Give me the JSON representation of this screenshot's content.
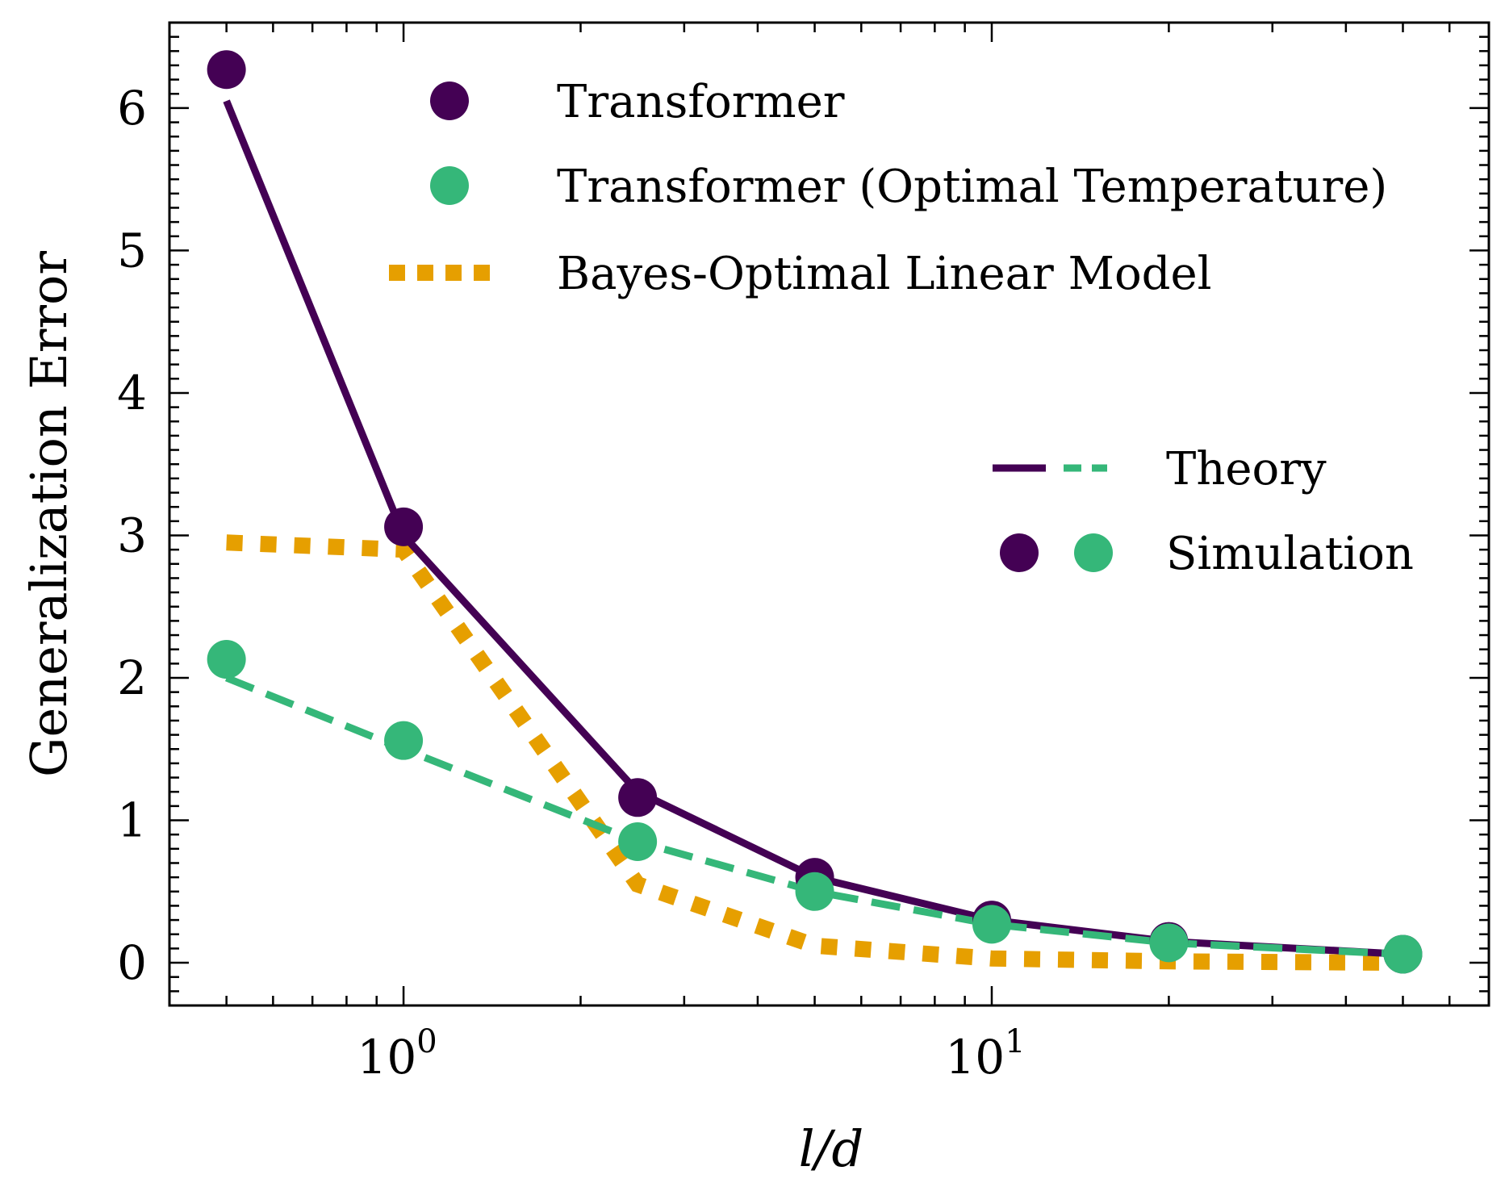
{
  "chart_data": {
    "type": "line",
    "title": "",
    "xlabel": "l/d",
    "ylabel": "Generalization Error",
    "xscale": "log",
    "xlim": [
      0.4,
      70
    ],
    "ylim": [
      -0.3,
      6.6
    ],
    "grid": false,
    "x_tick_labels": [
      {
        "value": 1,
        "base": "10",
        "exp": "0"
      },
      {
        "value": 10,
        "base": "10",
        "exp": "1"
      }
    ],
    "y_ticks": [
      0,
      1,
      2,
      3,
      4,
      5,
      6
    ],
    "y_tick_labels": [
      "0",
      "1",
      "2",
      "3",
      "4",
      "5",
      "6"
    ],
    "series": [
      {
        "name": "Transformer",
        "kind": "simulation",
        "color": "#440154",
        "x": [
          0.5,
          1,
          2.5,
          5,
          10,
          20,
          50
        ],
        "values": [
          6.27,
          3.06,
          1.16,
          0.6,
          0.3,
          0.15,
          0.06
        ]
      },
      {
        "name": "Transformer (Optimal Temperature)",
        "kind": "simulation",
        "color": "#35b779",
        "x": [
          0.5,
          1,
          2.5,
          5,
          10,
          20,
          50
        ],
        "values": [
          2.13,
          1.56,
          0.85,
          0.5,
          0.27,
          0.14,
          0.06
        ]
      },
      {
        "name": "Transformer theory",
        "kind": "theory",
        "color": "#440154",
        "x": [
          0.5,
          1,
          2.5,
          5,
          10,
          20,
          50
        ],
        "values": [
          6.05,
          3.0,
          1.2,
          0.6,
          0.3,
          0.15,
          0.06
        ]
      },
      {
        "name": "Transformer (Optimal Temperature) theory",
        "kind": "theory",
        "color": "#35b779",
        "x": [
          0.5,
          1,
          2.5,
          5,
          10,
          20,
          50
        ],
        "values": [
          2.0,
          1.5,
          0.85,
          0.5,
          0.27,
          0.14,
          0.06
        ]
      },
      {
        "name": "Bayes-Optimal Linear Model",
        "kind": "baseline",
        "color": "#e69f00",
        "x": [
          0.5,
          1,
          2.5,
          5,
          10,
          20,
          50
        ],
        "values": [
          2.95,
          2.9,
          0.55,
          0.12,
          0.03,
          0.01,
          0.0
        ]
      }
    ],
    "legend_1": {
      "placement": "top-center",
      "entries": [
        {
          "label": "Transformer",
          "marker": "circle",
          "color": "#440154"
        },
        {
          "label": "Transformer (Optimal Temperature)",
          "marker": "circle",
          "color": "#35b779"
        },
        {
          "label": "Bayes-Optimal Linear Model",
          "marker": "dotted-line",
          "color": "#e69f00"
        }
      ]
    },
    "legend_2": {
      "placement": "center-right",
      "entries": [
        {
          "label": "Theory",
          "marker": "lines",
          "colors": [
            "#440154",
            "#35b779"
          ]
        },
        {
          "label": "Simulation",
          "marker": "circles",
          "colors": [
            "#440154",
            "#35b779"
          ]
        }
      ]
    }
  }
}
